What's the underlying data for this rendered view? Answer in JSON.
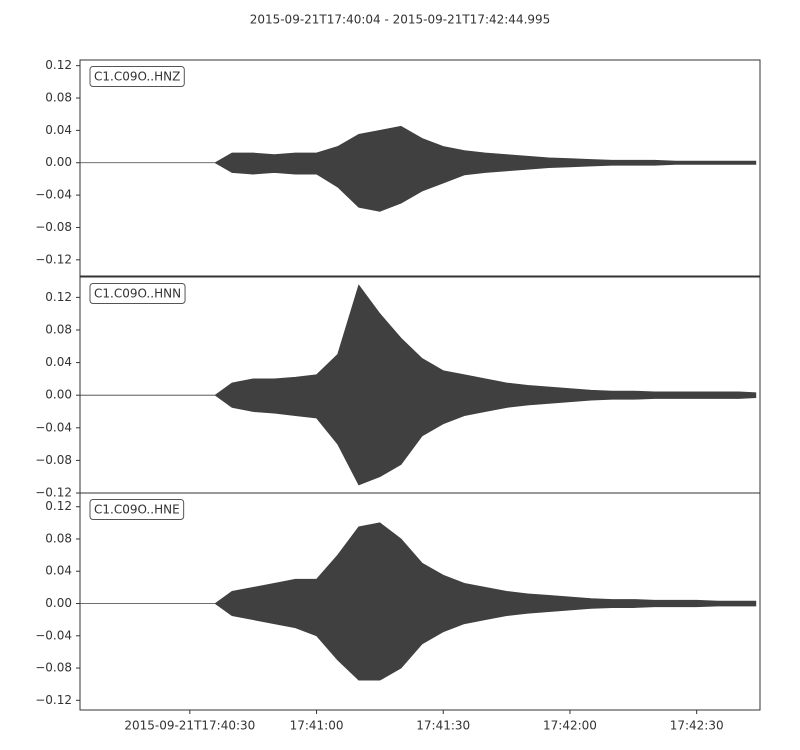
{
  "title": "2015-09-21T17:40:04  -  2015-09-21T17:42:44.995",
  "chart_data": [
    {
      "type": "area",
      "label": "C1.C09O..HNZ",
      "color": "#404040",
      "x": [
        "17:40:04",
        "17:40:10",
        "17:40:15",
        "17:40:20",
        "17:40:25",
        "17:40:30",
        "17:40:36",
        "17:40:40",
        "17:40:45",
        "17:40:50",
        "17:40:55",
        "17:41:00",
        "17:41:05",
        "17:41:10",
        "17:41:15",
        "17:41:20",
        "17:41:25",
        "17:41:30",
        "17:41:35",
        "17:41:40",
        "17:41:45",
        "17:41:50",
        "17:41:55",
        "17:42:00",
        "17:42:05",
        "17:42:10",
        "17:42:15",
        "17:42:20",
        "17:42:25",
        "17:42:30",
        "17:42:35",
        "17:42:40",
        "17:42:44"
      ],
      "max": [
        0,
        0,
        0,
        0,
        0,
        0,
        0,
        0.012,
        0.012,
        0.01,
        0.012,
        0.012,
        0.02,
        0.035,
        0.04,
        0.045,
        0.03,
        0.02,
        0.015,
        0.012,
        0.01,
        0.008,
        0.006,
        0.005,
        0.004,
        0.003,
        0.003,
        0.003,
        0.002,
        0.002,
        0.002,
        0.002,
        0.002
      ],
      "min": [
        0,
        0,
        0,
        0,
        0,
        0,
        0,
        -0.012,
        -0.014,
        -0.012,
        -0.014,
        -0.014,
        -0.03,
        -0.055,
        -0.06,
        -0.05,
        -0.035,
        -0.025,
        -0.015,
        -0.012,
        -0.01,
        -0.008,
        -0.006,
        -0.005,
        -0.004,
        -0.003,
        -0.003,
        -0.003,
        -0.002,
        -0.002,
        -0.002,
        -0.002,
        -0.002
      ],
      "xlim": [
        "17:40:04",
        "17:42:44.995"
      ],
      "ylim": [
        -0.14,
        0.127
      ],
      "yticks": [
        {
          "value": 0.12,
          "label": "0.12"
        },
        {
          "value": 0.08,
          "label": "0.08"
        },
        {
          "value": 0.04,
          "label": "0.04"
        },
        {
          "value": 0,
          "label": "0.00"
        },
        {
          "value": -0.04,
          "label": "−0.04"
        },
        {
          "value": -0.08,
          "label": "−0.08"
        },
        {
          "value": -0.12,
          "label": "−0.12"
        }
      ]
    },
    {
      "type": "area",
      "label": "C1.C09O..HNN",
      "color": "#404040",
      "x": [
        "17:40:04",
        "17:40:10",
        "17:40:15",
        "17:40:20",
        "17:40:25",
        "17:40:30",
        "17:40:36",
        "17:40:40",
        "17:40:45",
        "17:40:50",
        "17:40:55",
        "17:41:00",
        "17:41:05",
        "17:41:10",
        "17:41:15",
        "17:41:20",
        "17:41:25",
        "17:41:30",
        "17:41:35",
        "17:41:40",
        "17:41:45",
        "17:41:50",
        "17:41:55",
        "17:42:00",
        "17:42:05",
        "17:42:10",
        "17:42:15",
        "17:42:20",
        "17:42:25",
        "17:42:30",
        "17:42:35",
        "17:42:40",
        "17:42:44"
      ],
      "max": [
        0,
        0,
        0,
        0,
        0,
        0,
        0,
        0.015,
        0.02,
        0.02,
        0.022,
        0.025,
        0.05,
        0.135,
        0.1,
        0.07,
        0.045,
        0.03,
        0.025,
        0.02,
        0.015,
        0.012,
        0.01,
        0.008,
        0.006,
        0.005,
        0.005,
        0.004,
        0.004,
        0.004,
        0.004,
        0.004,
        0.003
      ],
      "min": [
        0,
        0,
        0,
        0,
        0,
        0,
        0,
        -0.015,
        -0.02,
        -0.022,
        -0.025,
        -0.028,
        -0.06,
        -0.11,
        -0.1,
        -0.085,
        -0.05,
        -0.035,
        -0.025,
        -0.02,
        -0.015,
        -0.012,
        -0.01,
        -0.008,
        -0.006,
        -0.005,
        -0.005,
        -0.004,
        -0.004,
        -0.004,
        -0.004,
        -0.004,
        -0.003
      ],
      "xlim": [
        "17:40:04",
        "17:42:44.995"
      ],
      "ylim": [
        -0.12,
        0.145
      ],
      "yticks": [
        {
          "value": 0.12,
          "label": "0.12"
        },
        {
          "value": 0.08,
          "label": "0.08"
        },
        {
          "value": 0.04,
          "label": "0.04"
        },
        {
          "value": 0,
          "label": "0.00"
        },
        {
          "value": -0.04,
          "label": "−0.04"
        },
        {
          "value": -0.08,
          "label": "−0.08"
        },
        {
          "value": -0.12,
          "label": "−0.12"
        }
      ]
    },
    {
      "type": "area",
      "label": "C1.C09O..HNE",
      "color": "#404040",
      "x": [
        "17:40:04",
        "17:40:10",
        "17:40:15",
        "17:40:20",
        "17:40:25",
        "17:40:30",
        "17:40:36",
        "17:40:40",
        "17:40:45",
        "17:40:50",
        "17:40:55",
        "17:41:00",
        "17:41:05",
        "17:41:10",
        "17:41:15",
        "17:41:20",
        "17:41:25",
        "17:41:30",
        "17:41:35",
        "17:41:40",
        "17:41:45",
        "17:41:50",
        "17:41:55",
        "17:42:00",
        "17:42:05",
        "17:42:10",
        "17:42:15",
        "17:42:20",
        "17:42:25",
        "17:42:30",
        "17:42:35",
        "17:42:40",
        "17:42:44"
      ],
      "max": [
        0,
        0,
        0,
        0,
        0,
        0,
        0,
        0.015,
        0.02,
        0.025,
        0.03,
        0.03,
        0.06,
        0.095,
        0.1,
        0.08,
        0.05,
        0.035,
        0.025,
        0.02,
        0.015,
        0.012,
        0.01,
        0.008,
        0.006,
        0.005,
        0.005,
        0.004,
        0.004,
        0.004,
        0.003,
        0.003,
        0.003
      ],
      "min": [
        0,
        0,
        0,
        0,
        0,
        0,
        0,
        -0.015,
        -0.02,
        -0.025,
        -0.03,
        -0.04,
        -0.07,
        -0.095,
        -0.095,
        -0.08,
        -0.05,
        -0.035,
        -0.025,
        -0.02,
        -0.015,
        -0.012,
        -0.01,
        -0.008,
        -0.006,
        -0.005,
        -0.005,
        -0.004,
        -0.004,
        -0.004,
        -0.003,
        -0.003,
        -0.003
      ],
      "xlim": [
        "17:40:04",
        "17:42:44.995"
      ],
      "ylim": [
        -0.132,
        0.137
      ],
      "yticks": [
        {
          "value": 0.12,
          "label": "0.12"
        },
        {
          "value": 0.08,
          "label": "0.08"
        },
        {
          "value": 0.04,
          "label": "0.04"
        },
        {
          "value": 0,
          "label": "0.00"
        },
        {
          "value": -0.04,
          "label": "−0.04"
        },
        {
          "value": -0.08,
          "label": "−0.08"
        },
        {
          "value": -0.12,
          "label": "−0.12"
        }
      ],
      "xticks": [
        {
          "value": "17:40:30",
          "label": "2015-09-21T17:40:30"
        },
        "17:41:00",
        "17:41:30",
        "17:42:00",
        "17:42:30"
      ]
    }
  ]
}
